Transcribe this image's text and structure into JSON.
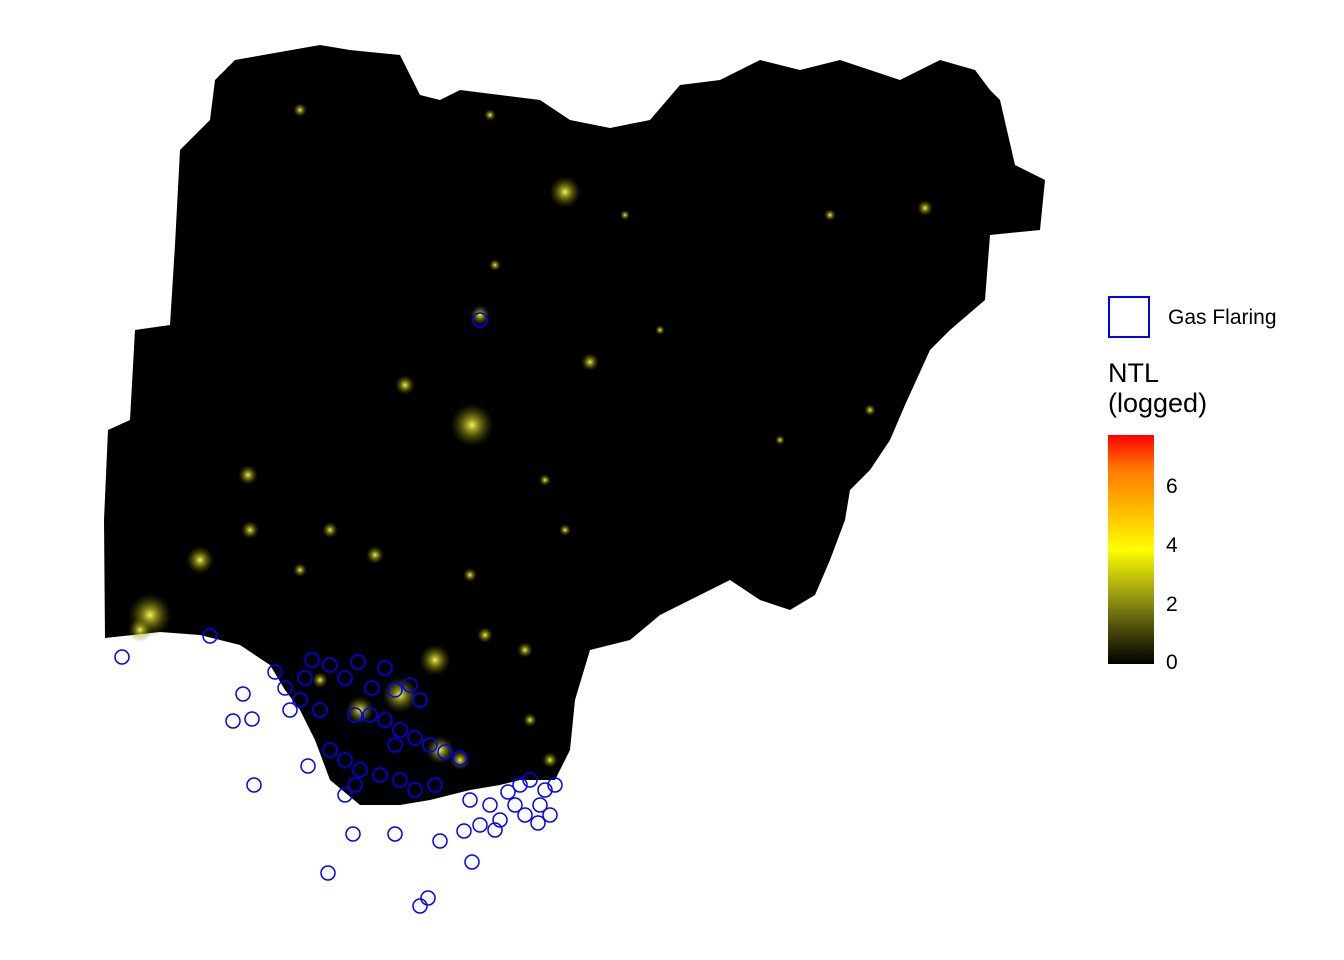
{
  "legend": {
    "gas_flaring_label": "Gas Flaring",
    "gas_flaring_color": "#0000ff",
    "ntl_title_line1": "NTL",
    "ntl_title_line2": "(logged)",
    "ticks": [
      "6",
      "4",
      "2",
      "0"
    ],
    "scale_min": 0,
    "scale_max": 7.8
  },
  "map": {
    "land_color": "#000000",
    "light_color": "#ffff33"
  }
}
